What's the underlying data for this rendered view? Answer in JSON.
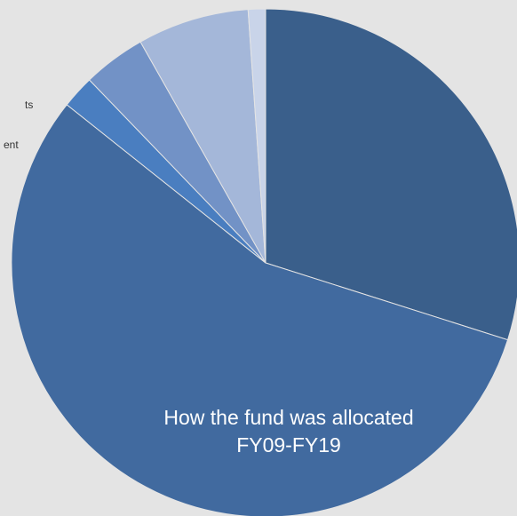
{
  "chart_data": {
    "type": "pie",
    "title": "How the fund was allocated",
    "subtitle": "FY09-FY19",
    "annotations": [
      "ts",
      "ent"
    ],
    "categories": [
      null,
      null,
      null,
      null,
      null,
      null
    ],
    "values": [
      29.9,
      55.8,
      2.1,
      4.0,
      7.1,
      1.1
    ],
    "colors": [
      "#3a5f8b",
      "#416a9f",
      "#4a7ec0",
      "#7292c6",
      "#a4b7d9",
      "#c9d4e9"
    ],
    "start_angle": 0,
    "direction": "clockwise"
  }
}
